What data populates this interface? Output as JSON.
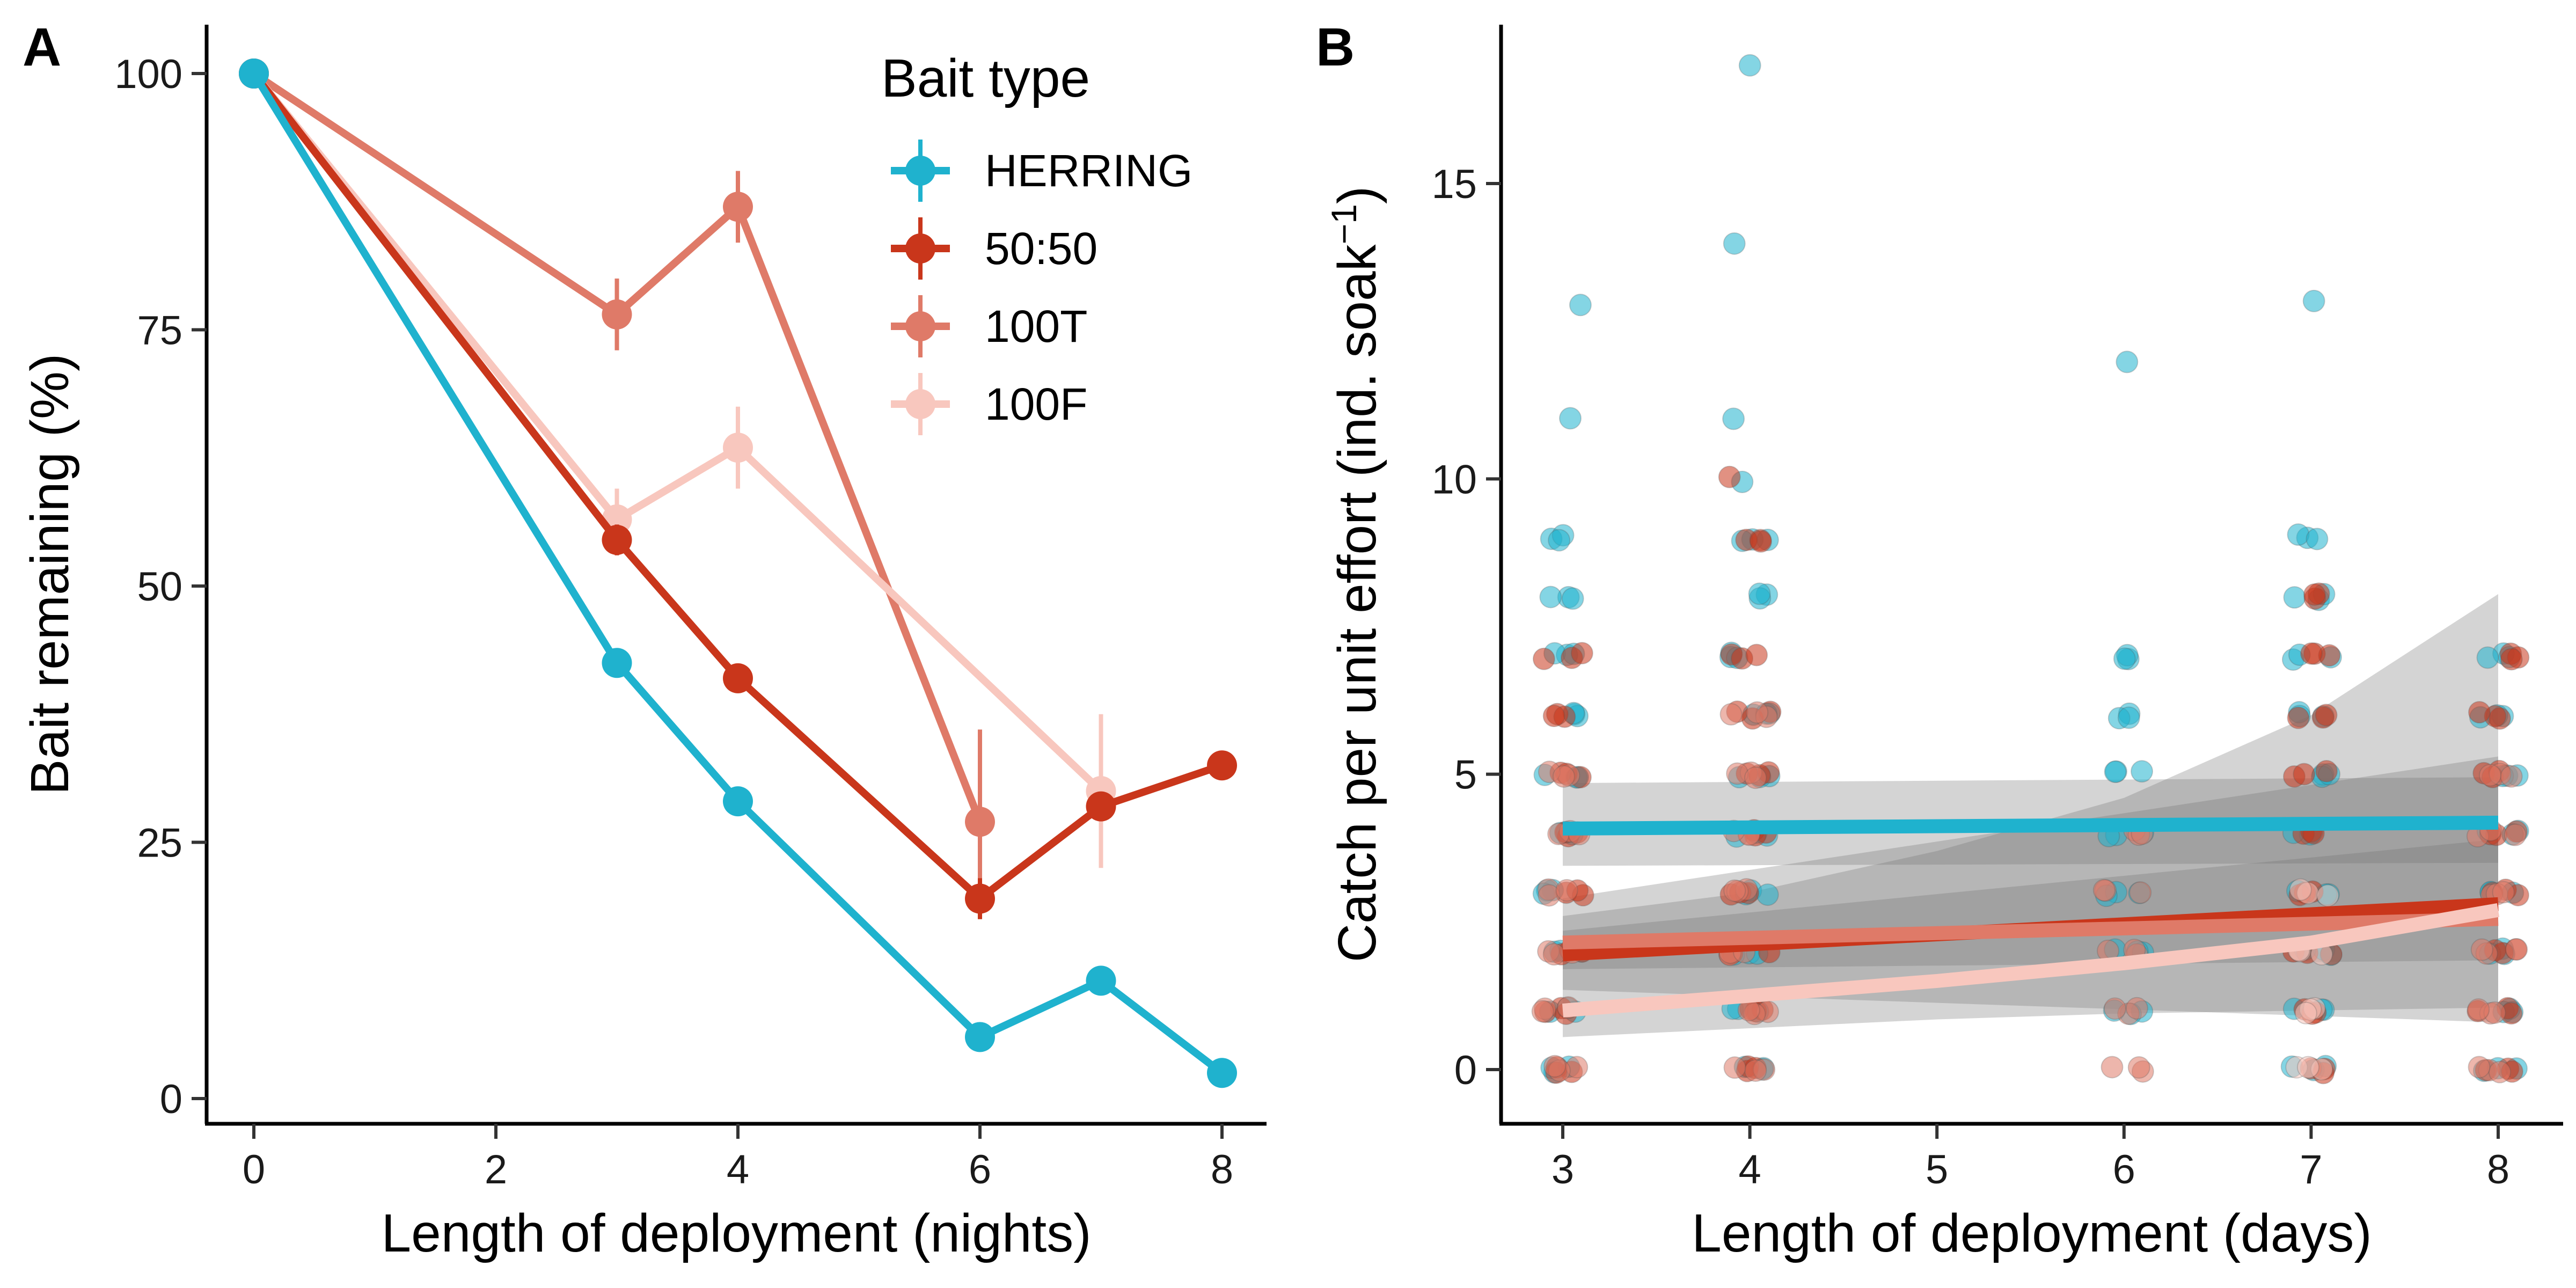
{
  "chart_data": [
    {
      "panel": "A",
      "type": "line",
      "xlabel": "Length of deployment (nights)",
      "ylabel": "Bait remaining (%)",
      "xlim": [
        0,
        8
      ],
      "ylim": [
        0,
        100
      ],
      "x_ticks": [
        "0",
        "2",
        "4",
        "6",
        "8"
      ],
      "y_ticks": [
        "0",
        "25",
        "50",
        "75",
        "100"
      ],
      "grid": false,
      "legend": {
        "title": "Bait type",
        "position": "top-right",
        "entries": [
          "HERRING",
          "50:50",
          "100T",
          "100F"
        ]
      },
      "series": [
        {
          "name": "HERRING",
          "color": "#1FB2CE",
          "points": [
            {
              "x": 0,
              "y": 100
            },
            {
              "x": 3,
              "y": 42.5
            },
            {
              "x": 4,
              "y": 29
            },
            {
              "x": 6,
              "y": 6
            },
            {
              "x": 7,
              "y": 11.5
            },
            {
              "x": 8,
              "y": 2.5
            }
          ]
        },
        {
          "name": "50:50",
          "color": "#C9361B",
          "points": [
            {
              "x": 0,
              "y": 100
            },
            {
              "x": 3,
              "y": 54.5,
              "err": 1.5
            },
            {
              "x": 4,
              "y": 41,
              "err": 1
            },
            {
              "x": 6,
              "y": 19.5,
              "err": 2
            },
            {
              "x": 7,
              "y": 28.5,
              "err": 1
            },
            {
              "x": 8,
              "y": 32.5,
              "err": 1
            }
          ]
        },
        {
          "name": "100T",
          "color": "#DF7A68",
          "points": [
            {
              "x": 0,
              "y": 100
            },
            {
              "x": 3,
              "y": 76.5,
              "err": 3.5
            },
            {
              "x": 4,
              "y": 87,
              "err": 3.5
            },
            {
              "x": 6,
              "y": 27,
              "err": 9
            }
          ]
        },
        {
          "name": "100F",
          "color": "#F8C7BE",
          "points": [
            {
              "x": 0,
              "y": 100
            },
            {
              "x": 3,
              "y": 56.5,
              "err": 3
            },
            {
              "x": 4,
              "y": 63.5,
              "err": 4
            },
            {
              "x": 7,
              "y": 30,
              "err": 7.5
            }
          ]
        }
      ]
    },
    {
      "panel": "B",
      "type": "scatter",
      "xlabel": "Length of deployment (days)",
      "ylabel": "Catch per unit effort (ind. soak",
      "ylabel_sup": "−1",
      "ylabel_close": ")",
      "xlim": [
        2.7,
        8.3
      ],
      "ylim": [
        -0.9,
        17.8
      ],
      "x_ticks": [
        "3",
        "4",
        "5",
        "6",
        "7",
        "8"
      ],
      "y_ticks": [
        "0",
        "5",
        "10",
        "15"
      ],
      "grid": false,
      "points": [
        {
          "x": 3,
          "ys": [
            0,
            1,
            2,
            3,
            4,
            5,
            6,
            7,
            8,
            9,
            11,
            13
          ],
          "series": "HERRING"
        },
        {
          "x": 3,
          "ys": [
            0,
            1,
            2,
            3,
            4,
            5,
            6,
            7
          ],
          "series": "50:50"
        },
        {
          "x": 3,
          "ys": [
            0,
            1,
            2,
            3,
            4,
            5
          ],
          "series": "100T"
        },
        {
          "x": 4,
          "ys": [
            0,
            1,
            2,
            3,
            4,
            5,
            6,
            7,
            8,
            9,
            10,
            11,
            14,
            17
          ],
          "series": "HERRING"
        },
        {
          "x": 4,
          "ys": [
            0,
            1,
            2,
            3,
            4,
            5,
            6,
            7,
            9,
            10
          ],
          "series": "50:50"
        },
        {
          "x": 4,
          "ys": [
            0,
            1,
            2,
            3,
            4,
            5,
            6
          ],
          "series": "100T"
        },
        {
          "x": 6,
          "ys": [
            1,
            2,
            3,
            4,
            5,
            6,
            7,
            12
          ],
          "series": "HERRING"
        },
        {
          "x": 6,
          "ys": [
            0,
            1,
            2,
            3,
            4
          ],
          "series": "100T"
        },
        {
          "x": 7,
          "ys": [
            0,
            1,
            2,
            3,
            4,
            5,
            6,
            7,
            8,
            9,
            13
          ],
          "series": "HERRING"
        },
        {
          "x": 7,
          "ys": [
            0,
            1,
            2,
            3,
            4,
            5,
            6,
            7,
            8
          ],
          "series": "50:50"
        },
        {
          "x": 7,
          "ys": [
            0,
            1,
            2,
            3
          ],
          "series": "100F"
        },
        {
          "x": 8,
          "ys": [
            0,
            1,
            2,
            3,
            4,
            5,
            6,
            7
          ],
          "series": "HERRING"
        },
        {
          "x": 8,
          "ys": [
            0,
            1,
            2,
            3,
            4,
            5,
            6,
            7
          ],
          "series": "50:50"
        },
        {
          "x": 8,
          "ys": [
            0,
            1,
            2,
            3,
            4,
            5
          ],
          "series": "100T"
        }
      ],
      "fits": [
        {
          "series": "HERRING",
          "color": "#1FB2CE",
          "x": [
            3,
            8
          ],
          "y": [
            4.08,
            4.18
          ],
          "lower": [
            3.45,
            3.5
          ],
          "upper": [
            4.85,
            4.95
          ]
        },
        {
          "series": "50:50",
          "color": "#C9361B",
          "x": [
            3,
            8
          ],
          "y": [
            1.95,
            2.8
          ],
          "lower": [
            1.7,
            1.85
          ],
          "upper": [
            2.35,
            3.9
          ]
        },
        {
          "series": "100T",
          "color": "#DF7A68",
          "x": [
            3,
            8
          ],
          "y": [
            2.15,
            2.55
          ],
          "lower": [
            1.35,
            0.8
          ],
          "upper": [
            2.9,
            5.3
          ]
        },
        {
          "series": "100F",
          "color": "#F8C7BE",
          "x": [
            3,
            4,
            5,
            6,
            7,
            8
          ],
          "y": [
            1.0,
            1.25,
            1.5,
            1.8,
            2.15,
            2.7
          ],
          "lower": [
            0.55,
            0.7,
            0.85,
            0.95,
            1.0,
            1.05
          ],
          "upper": [
            2.6,
            3.0,
            3.7,
            4.6,
            6.0,
            8.05
          ]
        }
      ]
    }
  ]
}
